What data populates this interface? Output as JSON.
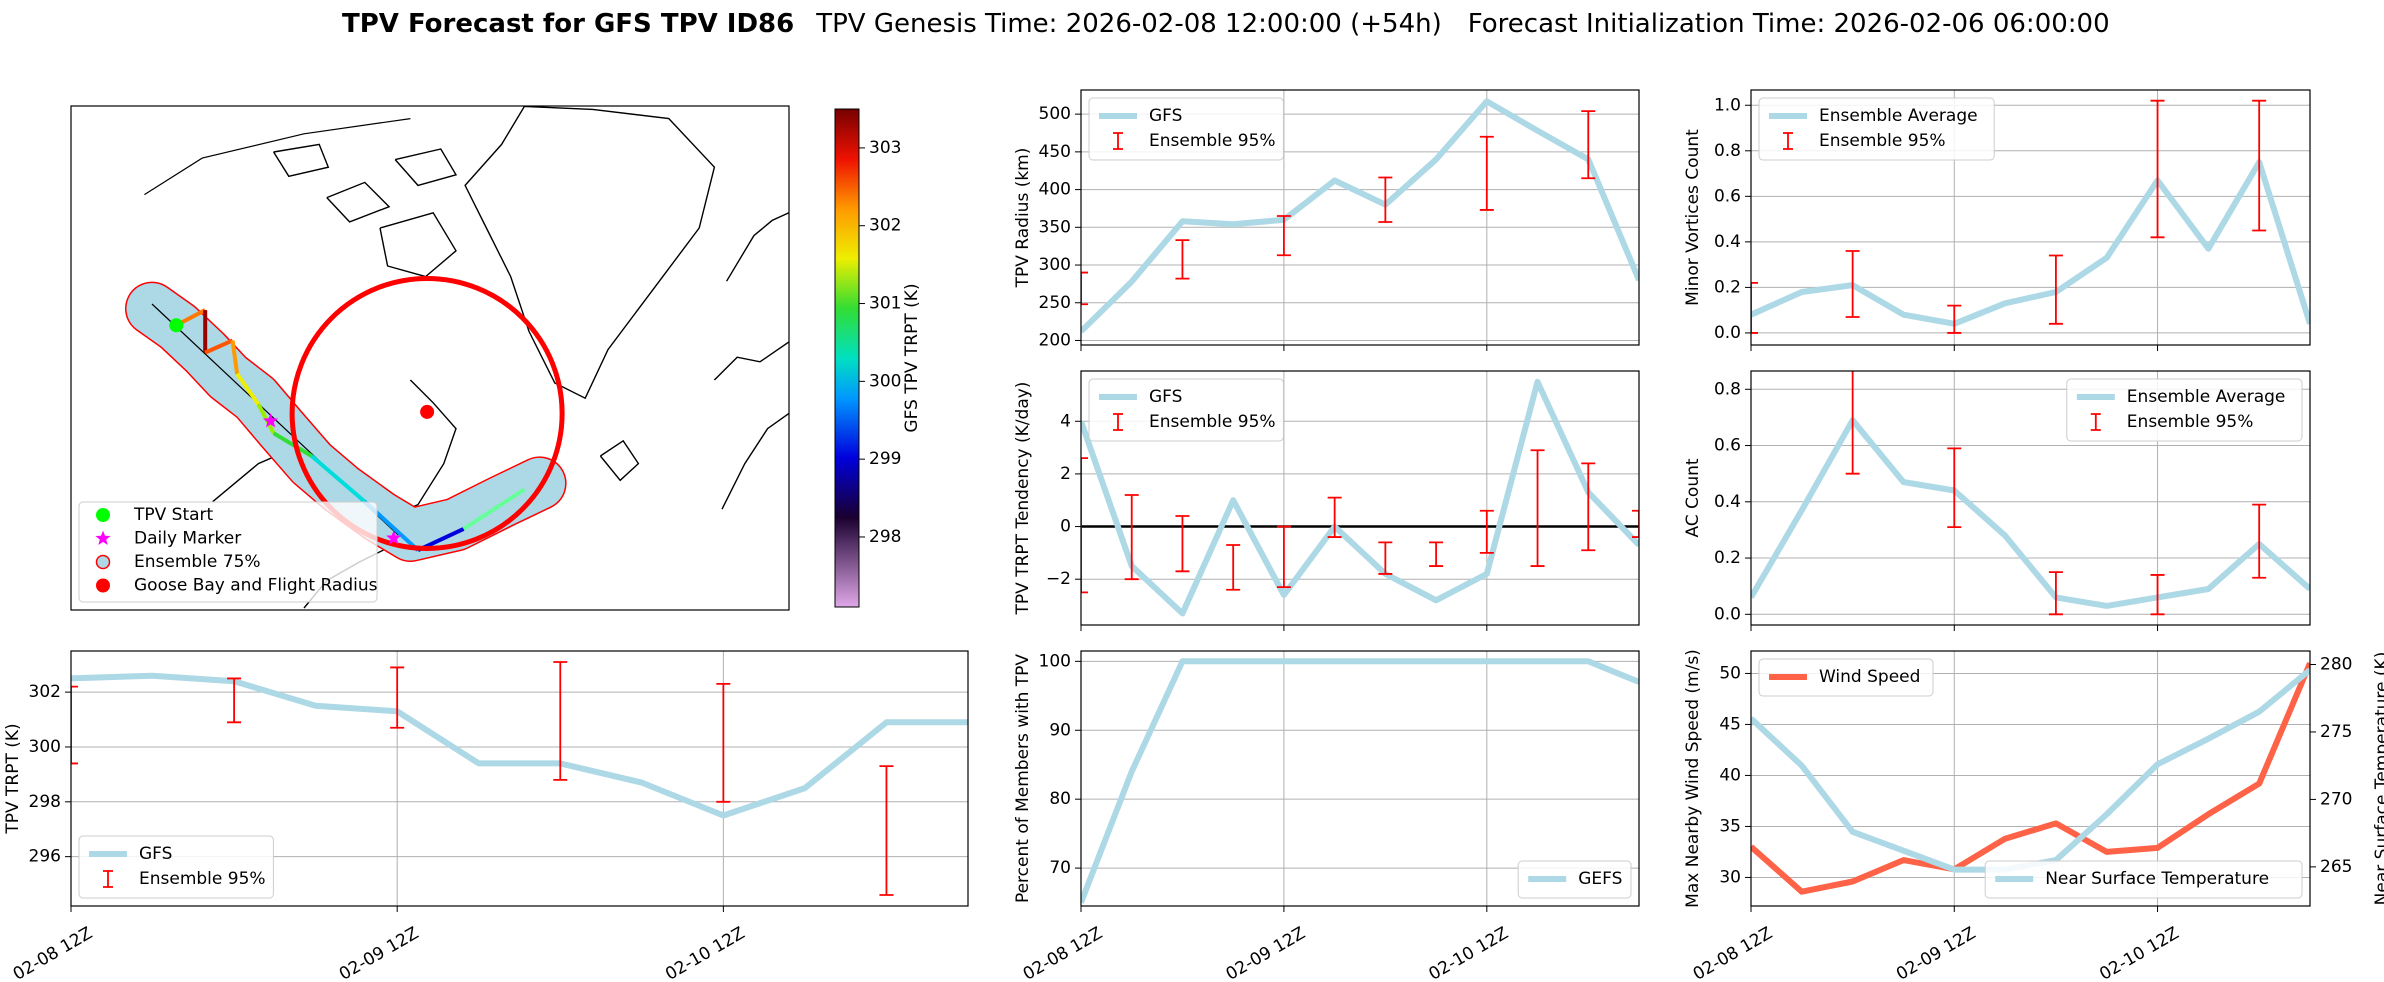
{
  "title": {
    "main": "TPV Forecast for GFS TPV ID86",
    "genesis": "TPV Genesis Time: 2026-02-08 12:00:00 (+54h)",
    "init": "Forecast Initialization Time: 2026-02-06 06:00:00"
  },
  "chart_data": [
    {
      "type": "map",
      "legend": [
        {
          "name": "TPV Start",
          "color": "#00ff00"
        },
        {
          "name": "Daily Marker",
          "color": "#ff00ff"
        },
        {
          "name": "Ensemble 75%",
          "color": "#add8e6"
        },
        {
          "name": "Goose Bay and Flight Radius",
          "color": "#ff0000"
        }
      ],
      "colorbar": {
        "label": "GFS TPV TRPT (K)",
        "lim": [
          297.1,
          303.5
        ],
        "ticks": [
          298,
          299,
          300,
          301,
          302,
          303
        ]
      }
    },
    {
      "type": "line",
      "ylabel": "TPV Radius (km)",
      "x": [
        "02-08 12Z",
        "02-08 18Z",
        "02-09 00Z",
        "02-09 06Z",
        "02-09 12Z",
        "02-09 18Z",
        "02-10 00Z",
        "02-10 06Z",
        "02-10 12Z",
        "02-10 18Z",
        "02-11 00Z",
        "02-11 06Z"
      ],
      "xlim": [
        "02-08 12Z",
        "02-11 06Z"
      ],
      "ylim": [
        194,
        532
      ],
      "yticks": [
        200,
        250,
        300,
        350,
        400,
        450,
        500
      ],
      "grid": true,
      "legend": "upper left",
      "series": [
        {
          "name": "GFS",
          "color": "#add8e6",
          "values": [
            212,
            278,
            358,
            354,
            360,
            412,
            380,
            440,
            517,
            478,
            440,
            280
          ]
        }
      ],
      "errors": {
        "name": "Ensemble 95%",
        "color": "#ff0000",
        "x": [
          "02-08 12Z",
          "02-09 00Z",
          "02-09 12Z",
          "02-10 00Z",
          "02-10 12Z",
          "02-11 00Z"
        ],
        "low": [
          248,
          282,
          313,
          357,
          373,
          415
        ],
        "high": [
          290,
          333,
          365,
          416,
          470,
          504
        ]
      }
    },
    {
      "type": "line",
      "ylabel": "TPV TRPT Tendency (K/day)",
      "x": [
        "02-08 12Z",
        "02-08 18Z",
        "02-09 00Z",
        "02-09 06Z",
        "02-09 12Z",
        "02-09 18Z",
        "02-10 00Z",
        "02-10 06Z",
        "02-10 12Z",
        "02-10 18Z",
        "02-11 00Z",
        "02-11 06Z"
      ],
      "xlim": [
        "02-08 12Z",
        "02-11 06Z"
      ],
      "ylim": [
        -3.74,
        5.91
      ],
      "yticks": [
        {
          "value": -2,
          "label": "−2"
        },
        0,
        2,
        4
      ],
      "grid": true,
      "hline": 0,
      "legend": "upper left",
      "series": [
        {
          "name": "GFS",
          "color": "#add8e6",
          "values": [
            4.0,
            -1.5,
            -3.3,
            1.0,
            -2.6,
            0.0,
            -1.8,
            -2.8,
            -1.8,
            5.5,
            1.3,
            -0.7
          ]
        }
      ],
      "errors": {
        "name": "Ensemble 95%",
        "color": "#ff0000",
        "x": [
          "02-08 12Z",
          "02-08 18Z",
          "02-09 00Z",
          "02-09 06Z",
          "02-09 12Z",
          "02-09 18Z",
          "02-10 00Z",
          "02-10 06Z",
          "02-10 12Z",
          "02-10 18Z",
          "02-11 00Z",
          "02-11 06Z"
        ],
        "low": [
          -2.5,
          -2.0,
          -1.7,
          -2.4,
          -2.3,
          -0.4,
          -1.8,
          -1.5,
          -1.0,
          -1.5,
          -0.9,
          -0.4
        ],
        "high": [
          2.6,
          1.2,
          0.4,
          -0.7,
          0.0,
          1.1,
          -0.6,
          -0.6,
          0.6,
          2.9,
          2.4,
          0.6
        ]
      }
    },
    {
      "type": "line",
      "ylabel": "Minor Vortices Count",
      "x": [
        "02-08 12Z",
        "02-08 18Z",
        "02-09 00Z",
        "02-09 06Z",
        "02-09 12Z",
        "02-09 18Z",
        "02-10 00Z",
        "02-10 06Z",
        "02-10 12Z",
        "02-10 18Z",
        "02-11 00Z",
        "02-11 06Z"
      ],
      "xlim": [
        "02-08 12Z",
        "02-11 06Z"
      ],
      "ylim": [
        -0.053,
        1.067
      ],
      "yticks": [
        {
          "value": 0,
          "label": "0.0"
        },
        0.2,
        0.4,
        0.6,
        0.8,
        {
          "value": 1,
          "label": "1.0"
        }
      ],
      "grid": true,
      "legend": "upper left",
      "series": [
        {
          "name": "Ensemble Average",
          "color": "#add8e6",
          "values": [
            0.08,
            0.18,
            0.21,
            0.08,
            0.04,
            0.13,
            0.18,
            0.33,
            0.67,
            0.37,
            0.75,
            0.04
          ]
        }
      ],
      "errors": {
        "name": "Ensemble 95%",
        "color": "#ff0000",
        "x": [
          "02-08 12Z",
          "02-09 00Z",
          "02-09 12Z",
          "02-10 00Z",
          "02-10 12Z",
          "02-11 00Z"
        ],
        "low": [
          0.0,
          0.07,
          0.0,
          0.04,
          0.42,
          0.45
        ],
        "high": [
          0.22,
          0.36,
          0.12,
          0.34,
          1.02,
          1.02
        ]
      }
    },
    {
      "type": "line",
      "ylabel": "AC Count",
      "x": [
        "02-08 12Z",
        "02-08 18Z",
        "02-09 00Z",
        "02-09 06Z",
        "02-09 12Z",
        "02-09 18Z",
        "02-10 00Z",
        "02-10 06Z",
        "02-10 12Z",
        "02-10 18Z",
        "02-11 00Z",
        "02-11 06Z"
      ],
      "xlim": [
        "02-08 12Z",
        "02-11 06Z"
      ],
      "ylim": [
        -0.038,
        0.865
      ],
      "yticks": [
        {
          "value": 0,
          "label": "0.0"
        },
        0.2,
        0.4,
        0.6,
        0.8
      ],
      "grid": true,
      "legend": "upper right",
      "series": [
        {
          "name": "Ensemble Average",
          "color": "#add8e6",
          "values": [
            0.06,
            0.37,
            0.69,
            0.47,
            0.44,
            0.28,
            0.06,
            0.03,
            0.06,
            0.09,
            0.25,
            0.09
          ]
        }
      ],
      "errors": {
        "name": "Ensemble 95%",
        "color": "#ff0000",
        "x": [
          "02-09 00Z",
          "02-09 12Z",
          "02-10 00Z",
          "02-10 12Z",
          "02-11 00Z"
        ],
        "low": [
          0.5,
          0.31,
          0.0,
          0.0,
          0.13
        ],
        "high": [
          0.89,
          0.59,
          0.15,
          0.14,
          0.39
        ]
      }
    },
    {
      "type": "line",
      "ylabel": "TPV TRPT (K)",
      "x": [
        "02-08 12Z",
        "02-08 18Z",
        "02-09 00Z",
        "02-09 06Z",
        "02-09 12Z",
        "02-09 18Z",
        "02-10 00Z",
        "02-10 06Z",
        "02-10 12Z",
        "02-10 18Z",
        "02-11 00Z",
        "02-11 06Z"
      ],
      "xlim": [
        "02-08 12Z",
        "02-11 06Z"
      ],
      "xticks": [
        "02-08 12Z",
        "02-09 12Z",
        "02-10 12Z"
      ],
      "ylim": [
        294.2,
        303.5
      ],
      "yticks": [
        296,
        298,
        300,
        302
      ],
      "grid": true,
      "legend": "lower left",
      "series": [
        {
          "name": "GFS",
          "color": "#add8e6",
          "values": [
            302.5,
            302.6,
            302.4,
            301.5,
            301.3,
            299.4,
            299.4,
            298.7,
            297.5,
            298.5,
            300.9,
            300.9
          ]
        }
      ],
      "errors": {
        "name": "Ensemble 95%",
        "color": "#ff0000",
        "x": [
          "02-08 12Z",
          "02-09 00Z",
          "02-09 12Z",
          "02-10 00Z",
          "02-10 12Z",
          "02-11 00Z"
        ],
        "low": [
          299.4,
          300.9,
          300.7,
          298.8,
          298.0,
          294.6
        ],
        "high": [
          302.2,
          302.5,
          302.9,
          303.1,
          302.3,
          299.3
        ]
      }
    },
    {
      "type": "line",
      "ylabel": "Percent of Members with TPV",
      "x": [
        "02-08 12Z",
        "02-08 18Z",
        "02-09 00Z",
        "02-09 06Z",
        "02-09 12Z",
        "02-09 18Z",
        "02-10 00Z",
        "02-10 06Z",
        "02-10 12Z",
        "02-10 18Z",
        "02-11 00Z",
        "02-11 06Z"
      ],
      "xlim": [
        "02-08 12Z",
        "02-11 06Z"
      ],
      "xticks": [
        "02-08 12Z",
        "02-09 12Z",
        "02-10 12Z"
      ],
      "ylim": [
        64.5,
        101.5
      ],
      "yticks": [
        70,
        80,
        90,
        100
      ],
      "grid": true,
      "legend": "lower right",
      "series": [
        {
          "name": "GEFS",
          "color": "#add8e6",
          "values": [
            65,
            84,
            100,
            100,
            100,
            100,
            100,
            100,
            100,
            100,
            100,
            97
          ]
        }
      ]
    },
    {
      "type": "line",
      "ylabel": "Max Nearby Wind Speed (m/s)",
      "ylabel_color": "#ff6347",
      "y2label": "Near Surface Temperature (K)",
      "y2label_color": "#4169e1",
      "x": [
        "02-08 12Z",
        "02-08 18Z",
        "02-09 00Z",
        "02-09 06Z",
        "02-09 12Z",
        "02-09 18Z",
        "02-10 00Z",
        "02-10 06Z",
        "02-10 12Z",
        "02-10 18Z",
        "02-11 00Z",
        "02-11 06Z"
      ],
      "xlim": [
        "02-08 12Z",
        "02-11 06Z"
      ],
      "xticks": [
        "02-08 12Z",
        "02-09 12Z",
        "02-10 12Z"
      ],
      "ylim": [
        27.2,
        52.2
      ],
      "yticks": [
        30,
        35,
        40,
        45,
        50
      ],
      "y2lim": [
        262.1,
        281.0
      ],
      "y2ticks": [
        265,
        270,
        275,
        280
      ],
      "grid": true,
      "legend": "upper left",
      "legend2": "lower right",
      "series": [
        {
          "name": "Wind Speed",
          "color": "#ff6347",
          "values": [
            33,
            28.6,
            29.6,
            31.7,
            30.8,
            33.8,
            35.3,
            32.5,
            32.9,
            36.2,
            39.2,
            51
          ]
        },
        {
          "name": "Near Surface Temperature",
          "color": "#add8e6",
          "axis": "y2",
          "values": [
            276.0,
            272.5,
            267.6,
            266.2,
            264.8,
            264.8,
            265.5,
            268.9,
            272.6,
            274.5,
            276.5,
            279.6
          ]
        }
      ]
    }
  ]
}
